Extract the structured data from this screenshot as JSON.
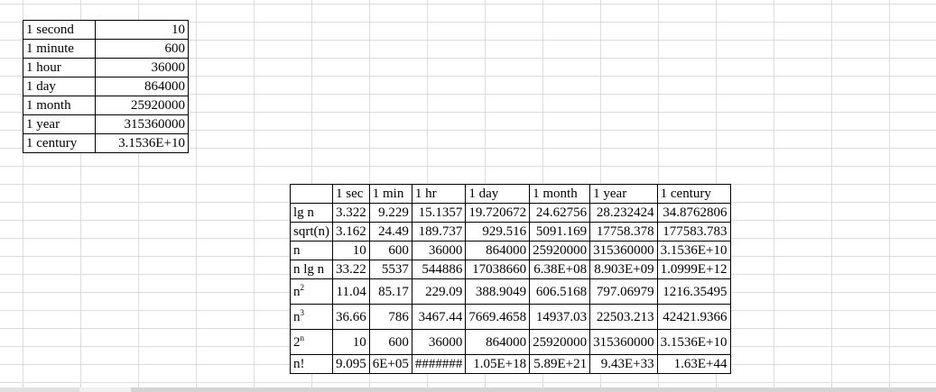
{
  "conversion_table": {
    "rows": [
      {
        "label": "1 second",
        "value": "10"
      },
      {
        "label": "1 minute",
        "value": "600"
      },
      {
        "label": "1 hour",
        "value": "36000"
      },
      {
        "label": "1 day",
        "value": "864000"
      },
      {
        "label": "1 month",
        "value": "25920000"
      },
      {
        "label": "1 year",
        "value": "315360000"
      },
      {
        "label": "1 century",
        "value": "3.1536E+10"
      }
    ]
  },
  "complexity_table": {
    "headers": [
      "1 sec",
      "1 min",
      "1 hr",
      "1 day",
      "1 month",
      "1 year",
      "1 century"
    ],
    "rows": [
      {
        "label": "lg n",
        "values": [
          "3.322",
          "9.229",
          "15.1357",
          "19.720672",
          "24.62756",
          "28.232424",
          "34.8762806"
        ]
      },
      {
        "label": "sqrt(n)",
        "values": [
          "3.162",
          "24.49",
          "189.737",
          "929.516",
          "5091.169",
          "17758.378",
          "177583.783"
        ]
      },
      {
        "label": "n",
        "values": [
          "10",
          "600",
          "36000",
          "864000",
          "25920000",
          "315360000",
          "3.1536E+10"
        ]
      },
      {
        "label": "n lg n",
        "values": [
          "33.22",
          "5537",
          "544886",
          "17038660",
          "6.38E+08",
          "8.903E+09",
          "1.0999E+12"
        ]
      },
      {
        "label": "n",
        "sup": "2",
        "values": [
          "11.04",
          "85.17",
          "229.09",
          "388.9049",
          "606.5168",
          "797.06979",
          "1216.35495"
        ]
      },
      {
        "label": "n",
        "sup": "3",
        "values": [
          "36.66",
          "786",
          "3467.44",
          "7669.4658",
          "14937.03",
          "22503.213",
          "42421.9366"
        ]
      },
      {
        "label": "2",
        "sup": "n",
        "values": [
          "10",
          "600",
          "36000",
          "864000",
          "25920000",
          "315360000",
          "3.1536E+10"
        ]
      },
      {
        "label": "n!",
        "values": [
          "9.095",
          "6E+05",
          "#######",
          "1.05E+18",
          "5.89E+21",
          "9.43E+33",
          "1.63E+44"
        ]
      }
    ]
  }
}
